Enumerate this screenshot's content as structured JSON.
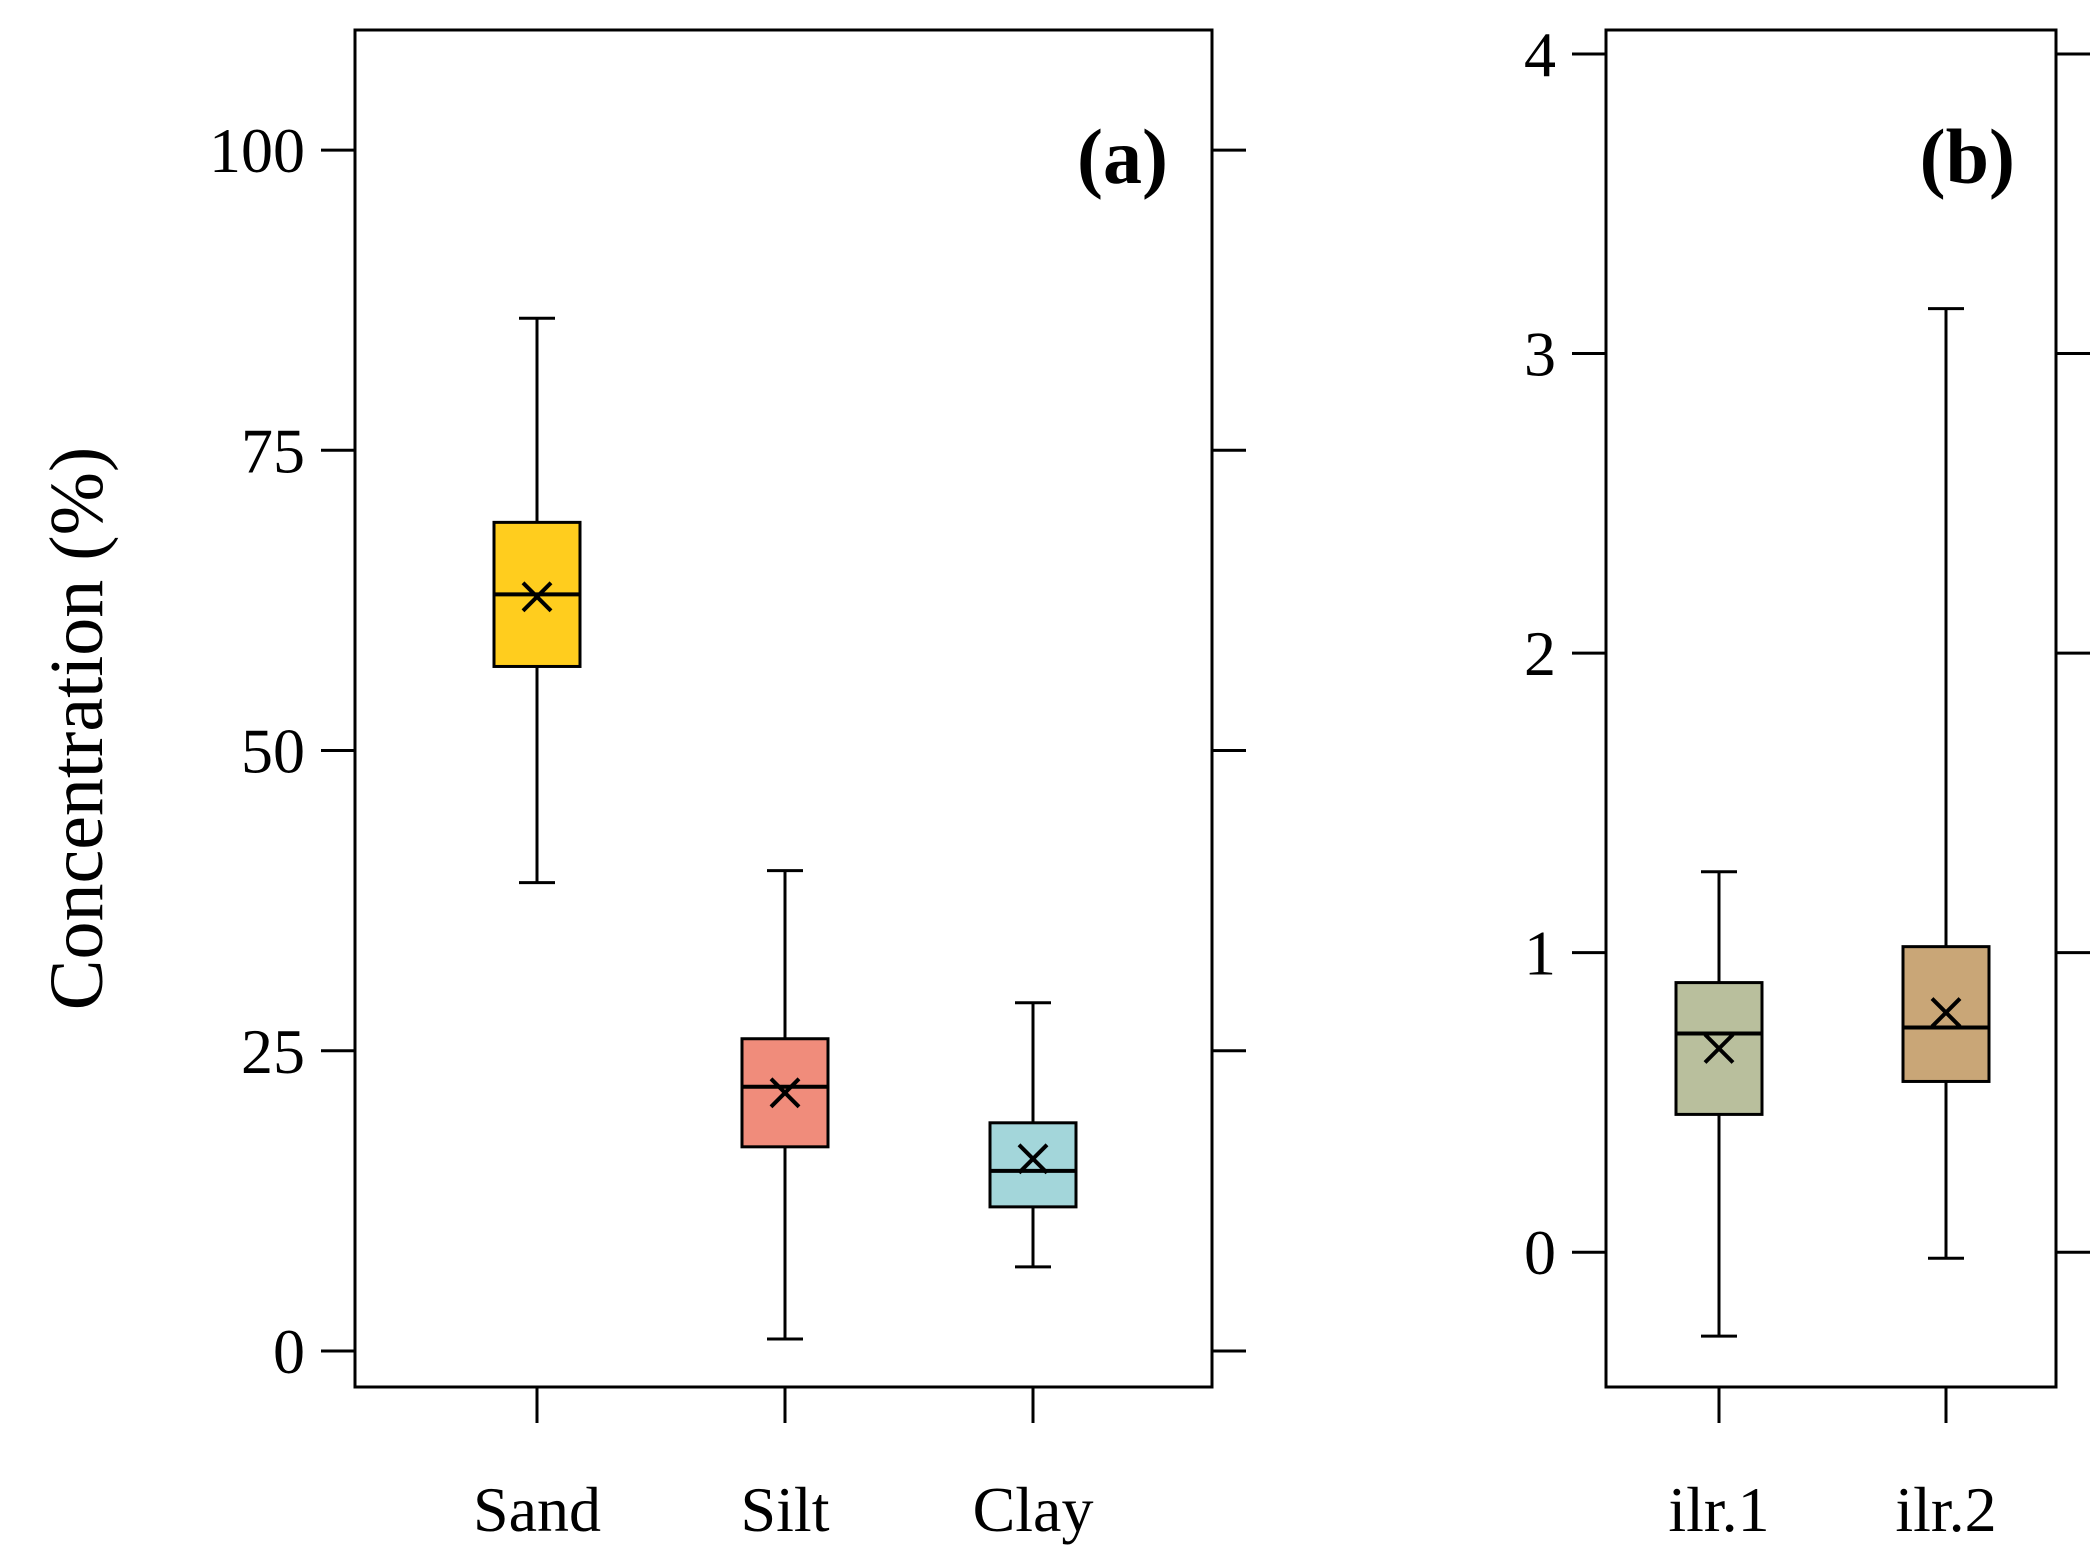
{
  "chart_data": [
    {
      "type": "box",
      "panel_label": "(a)",
      "ylabel": "Concentration (%)",
      "xlabel": "",
      "ylim": [
        -3,
        110
      ],
      "yticks": [
        0,
        25,
        50,
        75,
        100
      ],
      "ytick_labels": [
        "0",
        "25",
        "50",
        "75",
        "100"
      ],
      "categories": [
        "Sand",
        "Silt",
        "Clay"
      ],
      "boxes": [
        {
          "category": "Sand",
          "whisker_low": 39,
          "q1": 57,
          "median": 63,
          "q3": 69,
          "whisker_high": 86,
          "mean": 62.8,
          "color": "#FFCD1E"
        },
        {
          "category": "Silt",
          "whisker_low": 1,
          "q1": 17,
          "median": 22,
          "q3": 26,
          "whisker_high": 40,
          "mean": 21.5,
          "color": "#F08C7B"
        },
        {
          "category": "Clay",
          "whisker_low": 7,
          "q1": 12,
          "median": 15,
          "q3": 19,
          "whisker_high": 29,
          "mean": 16,
          "color": "#A3D6DA"
        }
      ]
    },
    {
      "type": "box",
      "panel_label": "(b)",
      "ylabel": "",
      "xlabel": "",
      "ylim": [
        -0.45,
        4.08
      ],
      "yticks": [
        0,
        1,
        2,
        3,
        4
      ],
      "ytick_labels": [
        "0",
        "1",
        "2",
        "3",
        "4"
      ],
      "categories": [
        "ilr.1",
        "ilr.2"
      ],
      "boxes": [
        {
          "category": "ilr.1",
          "whisker_low": -0.28,
          "q1": 0.46,
          "median": 0.73,
          "q3": 0.9,
          "whisker_high": 1.27,
          "mean": 0.68,
          "color": "#B9BF9D"
        },
        {
          "category": "ilr.2",
          "whisker_low": -0.02,
          "q1": 0.57,
          "median": 0.75,
          "q3": 1.02,
          "whisker_high": 3.15,
          "mean": 0.8,
          "color": "#C9A677"
        }
      ]
    }
  ]
}
